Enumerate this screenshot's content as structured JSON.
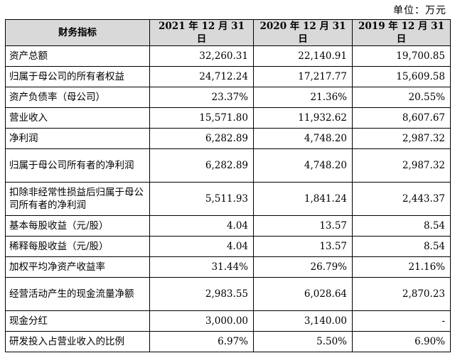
{
  "unit_label": "单位：万元",
  "headers": [
    "财务指标",
    "2021 年 12 月 31 日",
    "2020 年 12 月 31 日",
    "2019 年 12 月 31 日"
  ],
  "rows": [
    {
      "label": "资产总额",
      "values": [
        "32,260.31",
        "22,140.91",
        "19,700.85"
      ]
    },
    {
      "label": "归属于母公司的所有者权益",
      "values": [
        "24,712.24",
        "17,217.77",
        "15,609.58"
      ]
    },
    {
      "label": "资产负债率（母公司）",
      "values": [
        "23.37%",
        "21.36%",
        "20.55%"
      ]
    },
    {
      "label": "营业收入",
      "values": [
        "15,571.80",
        "11,932.62",
        "8,607.67"
      ]
    },
    {
      "label": "净利润",
      "values": [
        "6,282.89",
        "4,748.20",
        "2,987.32"
      ]
    },
    {
      "label": "归属于母公司所有者的净利润",
      "values": [
        "6,282.89",
        "4,748.20",
        "2,987.32"
      ]
    },
    {
      "label": "扣除非经常性损益后归属于母公司所有者的净利润",
      "values": [
        "5,511.93",
        "1,841.24",
        "2,443.37"
      ]
    },
    {
      "label": "基本每股收益（元/股）",
      "values": [
        "4.04",
        "13.57",
        "8.54"
      ]
    },
    {
      "label": "稀释每股收益（元/股）",
      "values": [
        "4.04",
        "13.57",
        "8.54"
      ]
    },
    {
      "label": "加权平均净资产收益率",
      "values": [
        "31.44%",
        "26.79%",
        "21.16%"
      ]
    },
    {
      "label": "经营活动产生的现金流量净额",
      "values": [
        "2,983.55",
        "6,028.64",
        "2,870.23"
      ]
    },
    {
      "label": "现金分红",
      "values": [
        "3,000.00",
        "3,140.00",
        "-"
      ]
    },
    {
      "label": "研发投入占营业收入的比例",
      "values": [
        "6.97%",
        "5.50%",
        "6.90%"
      ]
    }
  ]
}
